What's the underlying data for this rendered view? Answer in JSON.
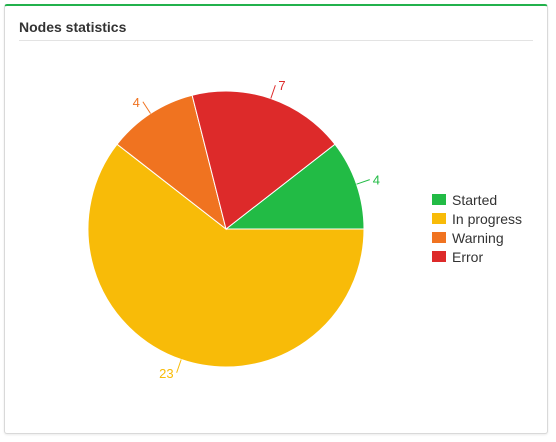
{
  "panel": {
    "title": "Nodes statistics"
  },
  "chart_data": {
    "type": "pie",
    "title": "Nodes statistics",
    "slices": [
      {
        "label": "Started",
        "value": 4,
        "color": "#22bb45"
      },
      {
        "label": "In progress",
        "value": 23,
        "color": "#f8bb08"
      },
      {
        "label": "Warning",
        "value": 4,
        "color": "#f07320"
      },
      {
        "label": "Error",
        "value": 7,
        "color": "#dd2a2a"
      }
    ],
    "legend_position": "right"
  }
}
